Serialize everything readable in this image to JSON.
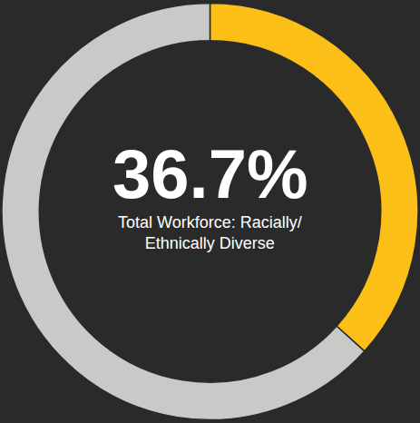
{
  "chart_data": {
    "type": "pie",
    "values": [
      36.7,
      63.3
    ],
    "value_labels": [
      "36.7%",
      null
    ],
    "colors": [
      "#fcbf17",
      "#c9c9c7"
    ],
    "subtitle": "Total Workforce: Racially/ Ethnically Diverse"
  }
}
